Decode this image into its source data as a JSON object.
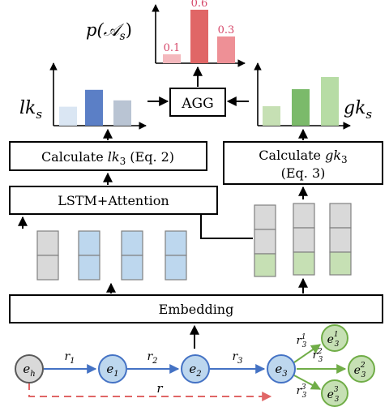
{
  "colors": {
    "blue": "#4472C4",
    "blue_node_fill": "#BDD7EE",
    "blue_dark_bar": "#5B7FC6",
    "blue_light_bar": "#DAE6F3",
    "gray_bar": "#B9C4D3",
    "green": "#70AD47",
    "green_fill": "#C6E0B4",
    "green_dark_bar": "#7BBA6A",
    "red": "#E06666",
    "red_text": "#D6486A",
    "gray_fill": "#D9D9D9"
  },
  "chart_top": {
    "title_main": "p(",
    "title_script": "𝒜",
    "title_sub": "s",
    "title_close": ")",
    "values": [
      0.1,
      0.6,
      0.3
    ],
    "value_labels": [
      "0.1",
      "0.6",
      "0.3"
    ]
  },
  "chart_lk": {
    "label_main": "lk",
    "label_sub": "s",
    "values": [
      0.45,
      0.85,
      0.6
    ]
  },
  "chart_gk": {
    "label_main": "gk",
    "label_sub": "s",
    "values": [
      0.4,
      0.75,
      1.0
    ]
  },
  "boxes": {
    "agg": "AGG",
    "calc_lk_prefix": "Calculate ",
    "calc_lk_var": "lk",
    "calc_lk_sub": "3",
    "calc_lk_suffix": " (Eq. 2)",
    "calc_gk_prefix": "Calculate ",
    "calc_gk_var": "gk",
    "calc_gk_sub": "3",
    "calc_gk_line2": "(Eq. 3)",
    "lstm": "LSTM+Attention",
    "embedding": "Embedding"
  },
  "graph": {
    "nodes": [
      {
        "base": "e",
        "sub": "h"
      },
      {
        "base": "e",
        "sub": "1"
      },
      {
        "base": "e",
        "sub": "2"
      },
      {
        "base": "e",
        "sub": "3"
      }
    ],
    "edges": [
      {
        "base": "r",
        "sub": "1"
      },
      {
        "base": "r",
        "sub": "2"
      },
      {
        "base": "r",
        "sub": "3"
      }
    ],
    "dashed_label": "r",
    "leaf_nodes": [
      {
        "base": "e",
        "sub": "3",
        "sup": "1"
      },
      {
        "base": "e",
        "sub": "3",
        "sup": "2"
      },
      {
        "base": "e",
        "sub": "3",
        "sup": "3"
      }
    ],
    "leaf_edges": [
      {
        "base": "r",
        "sub": "3",
        "sup": "1"
      },
      {
        "base": "r",
        "sub": "3",
        "sup": "2"
      },
      {
        "base": "r",
        "sub": "3",
        "sup": "3"
      }
    ]
  }
}
